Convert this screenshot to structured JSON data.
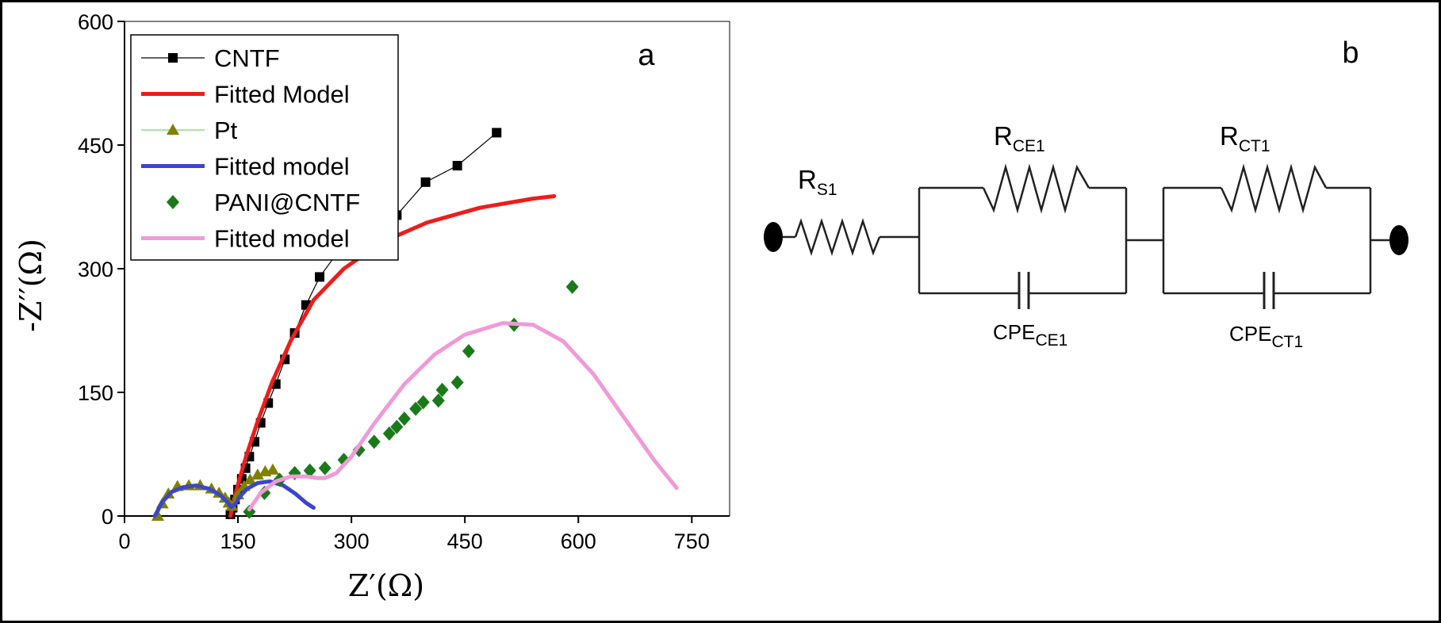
{
  "chart_data": {
    "type": "scatter",
    "panel_label": "a",
    "xlabel": "Z′(Ω)",
    "ylabel": "-Z′′(Ω)",
    "xlim": [
      0,
      800
    ],
    "ylim": [
      0,
      600
    ],
    "xticks": [
      0,
      150,
      300,
      450,
      600,
      750
    ],
    "yticks": [
      0,
      150,
      300,
      450,
      600
    ],
    "grid": false,
    "legend_position": "top-left",
    "series": [
      {
        "name": "CNTF",
        "style": "line+square",
        "color": "#000000",
        "x": [
          140,
          143,
          146,
          150,
          155,
          160,
          165,
          172,
          180,
          190,
          200,
          212,
          225,
          240,
          258,
          282,
          318,
          360,
          398,
          440,
          492
        ],
        "y": [
          2,
          10,
          20,
          32,
          45,
          58,
          72,
          90,
          113,
          137,
          160,
          190,
          222,
          256,
          290,
          320,
          340,
          365,
          405,
          425,
          465
        ]
      },
      {
        "name": "Fitted Model",
        "style": "line",
        "color": "#ee1c1c",
        "x": [
          140,
          145,
          150,
          160,
          175,
          195,
          220,
          250,
          290,
          340,
          400,
          470,
          540,
          568
        ],
        "y": [
          0,
          20,
          38,
          70,
          112,
          162,
          213,
          262,
          300,
          332,
          356,
          374,
          385,
          388
        ]
      },
      {
        "name": "Pt",
        "style": "line+triangle",
        "color": "#808000",
        "x": [
          44,
          50,
          58,
          70,
          85,
          100,
          115,
          125,
          133,
          138,
          142,
          150,
          158,
          166,
          176,
          186,
          196
        ],
        "y": [
          0,
          15,
          27,
          36,
          37,
          37,
          33,
          28,
          22,
          16,
          12,
          26,
          36,
          44,
          50,
          54,
          56
        ]
      },
      {
        "name": "Fitted model",
        "style": "line",
        "color": "#3c46c8",
        "x": [
          40,
          50,
          62,
          78,
          95,
          112,
          127,
          136,
          141,
          146,
          152,
          162,
          176,
          192,
          210,
          226,
          240,
          250
        ],
        "y": [
          0,
          17,
          29,
          35,
          37,
          33,
          25,
          17,
          11,
          14,
          23,
          33,
          40,
          42,
          37,
          27,
          16,
          10
        ]
      },
      {
        "name": "PANI@CNTF",
        "style": "diamond",
        "color": "#1a7a1a",
        "x": [
          165,
          185,
          205,
          225,
          245,
          265,
          290,
          310,
          330,
          350,
          360,
          370,
          385,
          395,
          415,
          420,
          440,
          455,
          515,
          592
        ],
        "y": [
          5,
          28,
          44,
          52,
          55,
          58,
          68,
          80,
          90,
          100,
          108,
          118,
          130,
          138,
          140,
          153,
          162,
          200,
          232,
          278
        ]
      },
      {
        "name": "Fitted model",
        "style": "line",
        "color": "#f09ad8",
        "x": [
          165,
          180,
          200,
          220,
          240,
          255,
          265,
          280,
          300,
          330,
          370,
          410,
          450,
          500,
          540,
          580,
          620,
          660,
          700,
          730
        ],
        "y": [
          8,
          28,
          42,
          48,
          48,
          46,
          46,
          52,
          72,
          112,
          160,
          196,
          220,
          234,
          232,
          212,
          172,
          120,
          68,
          34
        ]
      }
    ]
  },
  "circuit": {
    "panel_label": "b",
    "resistors": [
      {
        "name": "R",
        "sub": "S1"
      },
      {
        "name": "R",
        "sub": "CE1"
      },
      {
        "name": "R",
        "sub": "CT1"
      }
    ],
    "capacitors": [
      {
        "name": "CPE",
        "sub": "CE1"
      },
      {
        "name": "CPE",
        "sub": "CT1"
      }
    ]
  }
}
